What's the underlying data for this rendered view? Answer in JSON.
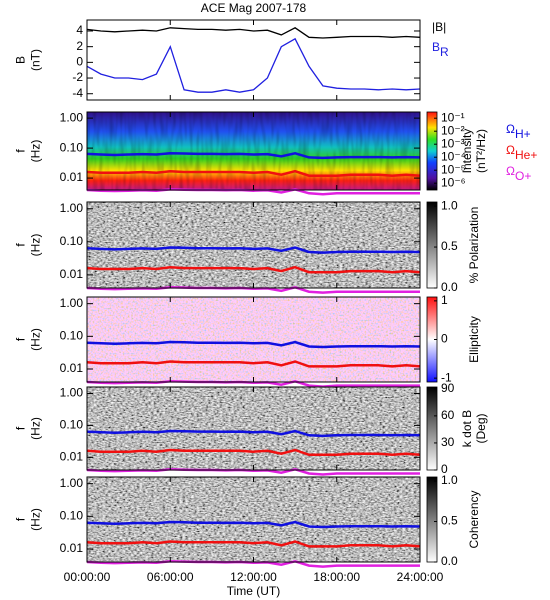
{
  "chart_data": [
    {
      "type": "line",
      "title": "ACE Mag 2007-178",
      "ylabel": [
        "B",
        "(nT)"
      ],
      "x": [
        0,
        1,
        2,
        3,
        4,
        5,
        6,
        7,
        8,
        9,
        10,
        11,
        12,
        13,
        14,
        15,
        16,
        17,
        18,
        19,
        20,
        21,
        22,
        23,
        24
      ],
      "xlim": [
        0,
        24
      ],
      "ylim": [
        -4.8,
        5.4
      ],
      "yticks": [
        4,
        2,
        0,
        -2,
        -4
      ],
      "series": [
        {
          "name": "|B|",
          "color": "#000000",
          "values": [
            4.2,
            4.0,
            3.9,
            4.0,
            4.1,
            4.0,
            4.4,
            4.3,
            4.2,
            4.2,
            4.1,
            4.2,
            4.0,
            4.1,
            3.5,
            4.4,
            3.2,
            3.1,
            3.2,
            3.3,
            3.3,
            3.3,
            3.2,
            3.3,
            3.2
          ]
        },
        {
          "name": "B",
          "sub": "R",
          "color": "#2020e0",
          "values": [
            -0.5,
            -1.5,
            -2,
            -2,
            -2.2,
            -1.5,
            2,
            -3.5,
            -3.8,
            -3.8,
            -3.5,
            -3.8,
            -3.5,
            -2,
            2,
            3,
            -0.5,
            -3,
            -3.3,
            -3.4,
            -3.4,
            -3.5,
            -3.4,
            -3.5,
            -3.4
          ]
        }
      ]
    },
    {
      "type": "heatmap",
      "colormap": "rainbow",
      "ylabel": [
        "f",
        "(Hz)"
      ],
      "zlabel": [
        "Intensity",
        "(nT²/Hz)"
      ],
      "x": [
        0,
        1,
        2,
        3,
        4,
        5,
        6,
        7,
        8,
        9,
        10,
        11,
        12,
        13,
        14,
        15,
        16,
        17,
        18,
        19,
        20,
        21,
        22,
        23,
        24
      ],
      "xlim": [
        0,
        24
      ],
      "ylim": [
        0.004,
        1.6
      ],
      "ylog": true,
      "yticks": [
        {
          "value": 1,
          "label": "1.00"
        },
        {
          "value": 0.1,
          "label": "0.10"
        },
        {
          "value": 0.01,
          "label": "0.01"
        }
      ],
      "zlim": [
        3e-07,
        0.3
      ],
      "zlog": true,
      "zticks": [
        {
          "value": 0.1,
          "label": "10⁻¹"
        },
        {
          "value": 0.01,
          "label": "10⁻²"
        },
        {
          "value": 0.001,
          "label": "10⁻³"
        },
        {
          "value": 0.0001,
          "label": "10⁻⁴"
        },
        {
          "value": 1e-05,
          "label": "10⁻⁵"
        },
        {
          "value": 1e-06,
          "label": "10⁻⁶"
        }
      ],
      "series": [
        {
          "name": "Ω",
          "sub": "H+",
          "color": "#1010e0",
          "values": [
            0.064,
            0.061,
            0.059,
            0.061,
            0.063,
            0.061,
            0.067,
            0.066,
            0.064,
            0.064,
            0.063,
            0.064,
            0.061,
            0.063,
            0.053,
            0.067,
            0.049,
            0.047,
            0.049,
            0.05,
            0.05,
            0.05,
            0.049,
            0.05,
            0.049
          ]
        },
        {
          "name": "Ω",
          "sub": "He+",
          "color": "#f01010",
          "values": [
            0.016,
            0.015,
            0.015,
            0.015,
            0.016,
            0.015,
            0.017,
            0.016,
            0.016,
            0.016,
            0.016,
            0.016,
            0.015,
            0.016,
            0.013,
            0.017,
            0.012,
            0.012,
            0.012,
            0.013,
            0.013,
            0.013,
            0.012,
            0.013,
            0.012
          ]
        },
        {
          "name": "Ω",
          "sub": "O+",
          "color": "#e020e0",
          "values": [
            0.004,
            0.0038,
            0.0037,
            0.0038,
            0.0039,
            0.0038,
            0.0042,
            0.0041,
            0.004,
            0.004,
            0.0039,
            0.004,
            0.0038,
            0.0039,
            0.0033,
            0.0042,
            0.0031,
            0.0029,
            0.0031,
            0.0031,
            0.0031,
            0.0031,
            0.0031,
            0.0031,
            0.0031
          ]
        }
      ]
    },
    {
      "type": "heatmap",
      "colormap": "gray",
      "ylabel": [
        "f",
        "(Hz)"
      ],
      "zlabel": [
        "% Polarization"
      ],
      "x": [
        0,
        1,
        2,
        3,
        4,
        5,
        6,
        7,
        8,
        9,
        10,
        11,
        12,
        13,
        14,
        15,
        16,
        17,
        18,
        19,
        20,
        21,
        22,
        23,
        24
      ],
      "xlim": [
        0,
        24
      ],
      "ylim": [
        0.004,
        1.6
      ],
      "ylog": true,
      "yticks": [
        {
          "value": 1,
          "label": "1.00"
        },
        {
          "value": 0.1,
          "label": "0.10"
        },
        {
          "value": 0.01,
          "label": "0.01"
        }
      ],
      "zlim": [
        0,
        1.05
      ],
      "zticks": [
        {
          "value": 0,
          "label": "0.0"
        },
        {
          "value": 0.5,
          "label": "0.5"
        },
        {
          "value": 1,
          "label": "1.0"
        }
      ],
      "series": [
        {
          "color": "#1010e0",
          "values": [
            0.064,
            0.061,
            0.059,
            0.061,
            0.063,
            0.061,
            0.067,
            0.066,
            0.064,
            0.064,
            0.063,
            0.064,
            0.061,
            0.063,
            0.053,
            0.067,
            0.049,
            0.047,
            0.049,
            0.05,
            0.05,
            0.05,
            0.049,
            0.05,
            0.049
          ]
        },
        {
          "color": "#f01010",
          "values": [
            0.016,
            0.015,
            0.015,
            0.015,
            0.016,
            0.015,
            0.017,
            0.016,
            0.016,
            0.016,
            0.016,
            0.016,
            0.015,
            0.016,
            0.013,
            0.017,
            0.012,
            0.012,
            0.012,
            0.013,
            0.013,
            0.013,
            0.012,
            0.013,
            0.012
          ]
        },
        {
          "color": "#e020e0",
          "values": [
            0.004,
            0.0038,
            0.0037,
            0.0038,
            0.0039,
            0.0038,
            0.0042,
            0.0041,
            0.004,
            0.004,
            0.0039,
            0.004,
            0.0038,
            0.0039,
            0.0033,
            0.0042,
            0.0031,
            0.0029,
            0.0031,
            0.0031,
            0.0031,
            0.0031,
            0.0031,
            0.0031,
            0.0031
          ]
        }
      ]
    },
    {
      "type": "heatmap",
      "colormap": "bwr",
      "ylabel": [
        "f",
        "(Hz)"
      ],
      "zlabel": [
        "Ellipticity"
      ],
      "x": [
        0,
        1,
        2,
        3,
        4,
        5,
        6,
        7,
        8,
        9,
        10,
        11,
        12,
        13,
        14,
        15,
        16,
        17,
        18,
        19,
        20,
        21,
        22,
        23,
        24
      ],
      "xlim": [
        0,
        24
      ],
      "ylim": [
        0.004,
        1.6
      ],
      "ylog": true,
      "yticks": [
        {
          "value": 1,
          "label": "1.00"
        },
        {
          "value": 0.1,
          "label": "0.10"
        },
        {
          "value": 0.01,
          "label": "0.01"
        }
      ],
      "zlim": [
        -1.1,
        1.1
      ],
      "zticks": [
        1,
        0,
        -1
      ],
      "series": [
        {
          "color": "#1010e0",
          "values": [
            0.064,
            0.061,
            0.059,
            0.061,
            0.063,
            0.061,
            0.067,
            0.066,
            0.064,
            0.064,
            0.063,
            0.064,
            0.061,
            0.063,
            0.053,
            0.067,
            0.049,
            0.047,
            0.049,
            0.05,
            0.05,
            0.05,
            0.049,
            0.05,
            0.049
          ]
        },
        {
          "color": "#f01010",
          "values": [
            0.016,
            0.015,
            0.015,
            0.015,
            0.016,
            0.015,
            0.017,
            0.016,
            0.016,
            0.016,
            0.016,
            0.016,
            0.015,
            0.016,
            0.013,
            0.017,
            0.012,
            0.012,
            0.012,
            0.013,
            0.013,
            0.013,
            0.012,
            0.013,
            0.012
          ]
        },
        {
          "color": "#e020e0",
          "values": [
            0.004,
            0.0038,
            0.0037,
            0.0038,
            0.0039,
            0.0038,
            0.0042,
            0.0041,
            0.004,
            0.004,
            0.0039,
            0.004,
            0.0038,
            0.0039,
            0.0033,
            0.0042,
            0.0031,
            0.0029,
            0.0031,
            0.0031,
            0.0031,
            0.0031,
            0.0031,
            0.0031,
            0.0031
          ]
        }
      ]
    },
    {
      "type": "heatmap",
      "colormap": "gray",
      "ylabel": [
        "f",
        "(Hz)"
      ],
      "zlabel": [
        "k dot B",
        "(Deg)"
      ],
      "x": [
        0,
        1,
        2,
        3,
        4,
        5,
        6,
        7,
        8,
        9,
        10,
        11,
        12,
        13,
        14,
        15,
        16,
        17,
        18,
        19,
        20,
        21,
        22,
        23,
        24
      ],
      "xlim": [
        0,
        24
      ],
      "ylim": [
        0.004,
        1.6
      ],
      "ylog": true,
      "yticks": [
        {
          "value": 1,
          "label": "1.00"
        },
        {
          "value": 0.1,
          "label": "0.10"
        },
        {
          "value": 0.01,
          "label": "0.01"
        }
      ],
      "zlim": [
        0,
        92
      ],
      "zticks": [
        0,
        30,
        60,
        90
      ],
      "series": [
        {
          "color": "#1010e0",
          "values": [
            0.064,
            0.061,
            0.059,
            0.061,
            0.063,
            0.061,
            0.067,
            0.066,
            0.064,
            0.064,
            0.063,
            0.064,
            0.061,
            0.063,
            0.053,
            0.067,
            0.049,
            0.047,
            0.049,
            0.05,
            0.05,
            0.05,
            0.049,
            0.05,
            0.049
          ]
        },
        {
          "color": "#f01010",
          "values": [
            0.016,
            0.015,
            0.015,
            0.015,
            0.016,
            0.015,
            0.017,
            0.016,
            0.016,
            0.016,
            0.016,
            0.016,
            0.015,
            0.016,
            0.013,
            0.017,
            0.012,
            0.012,
            0.012,
            0.013,
            0.013,
            0.013,
            0.012,
            0.013,
            0.012
          ]
        },
        {
          "color": "#e020e0",
          "values": [
            0.004,
            0.0038,
            0.0037,
            0.0038,
            0.0039,
            0.0038,
            0.0042,
            0.0041,
            0.004,
            0.004,
            0.0039,
            0.004,
            0.0038,
            0.0039,
            0.0033,
            0.0042,
            0.0031,
            0.0029,
            0.0031,
            0.0031,
            0.0031,
            0.0031,
            0.0031,
            0.0031,
            0.0031
          ]
        }
      ]
    },
    {
      "type": "heatmap",
      "colormap": "gray",
      "ylabel": [
        "f",
        "(Hz)"
      ],
      "zlabel": [
        "Coherency"
      ],
      "xlabel": "Time (UT)",
      "x": [
        0,
        1,
        2,
        3,
        4,
        5,
        6,
        7,
        8,
        9,
        10,
        11,
        12,
        13,
        14,
        15,
        16,
        17,
        18,
        19,
        20,
        21,
        22,
        23,
        24
      ],
      "xlim": [
        0,
        24
      ],
      "ylim": [
        0.004,
        1.6
      ],
      "ylog": true,
      "xticks": [
        {
          "value": 0,
          "label": "00:00:00"
        },
        {
          "value": 6,
          "label": "06:00:00"
        },
        {
          "value": 12,
          "label": "12:00:00"
        },
        {
          "value": 18,
          "label": "18:00:00"
        },
        {
          "value": 24,
          "label": "24:00:00"
        }
      ],
      "yticks": [
        {
          "value": 1,
          "label": "1.00"
        },
        {
          "value": 0.1,
          "label": "0.10"
        },
        {
          "value": 0.01,
          "label": "0.01"
        }
      ],
      "zlim": [
        0,
        1.05
      ],
      "zticks": [
        {
          "value": 0,
          "label": "0.0"
        },
        {
          "value": 0.5,
          "label": "0.5"
        },
        {
          "value": 1,
          "label": "1.0"
        }
      ],
      "series": [
        {
          "color": "#1010e0",
          "values": [
            0.064,
            0.061,
            0.059,
            0.061,
            0.063,
            0.061,
            0.067,
            0.066,
            0.064,
            0.064,
            0.063,
            0.064,
            0.061,
            0.063,
            0.053,
            0.067,
            0.049,
            0.047,
            0.049,
            0.05,
            0.05,
            0.05,
            0.049,
            0.05,
            0.049
          ]
        },
        {
          "color": "#f01010",
          "values": [
            0.016,
            0.015,
            0.015,
            0.015,
            0.016,
            0.015,
            0.017,
            0.016,
            0.016,
            0.016,
            0.016,
            0.016,
            0.015,
            0.016,
            0.013,
            0.017,
            0.012,
            0.012,
            0.012,
            0.013,
            0.013,
            0.013,
            0.012,
            0.013,
            0.012
          ]
        },
        {
          "color": "#e020e0",
          "values": [
            0.004,
            0.0038,
            0.0037,
            0.0038,
            0.0039,
            0.0038,
            0.0042,
            0.0041,
            0.004,
            0.004,
            0.0039,
            0.004,
            0.0038,
            0.0039,
            0.0033,
            0.0042,
            0.0031,
            0.0029,
            0.0031,
            0.0031,
            0.0031,
            0.0031,
            0.0031,
            0.0031,
            0.0031
          ]
        }
      ]
    }
  ]
}
